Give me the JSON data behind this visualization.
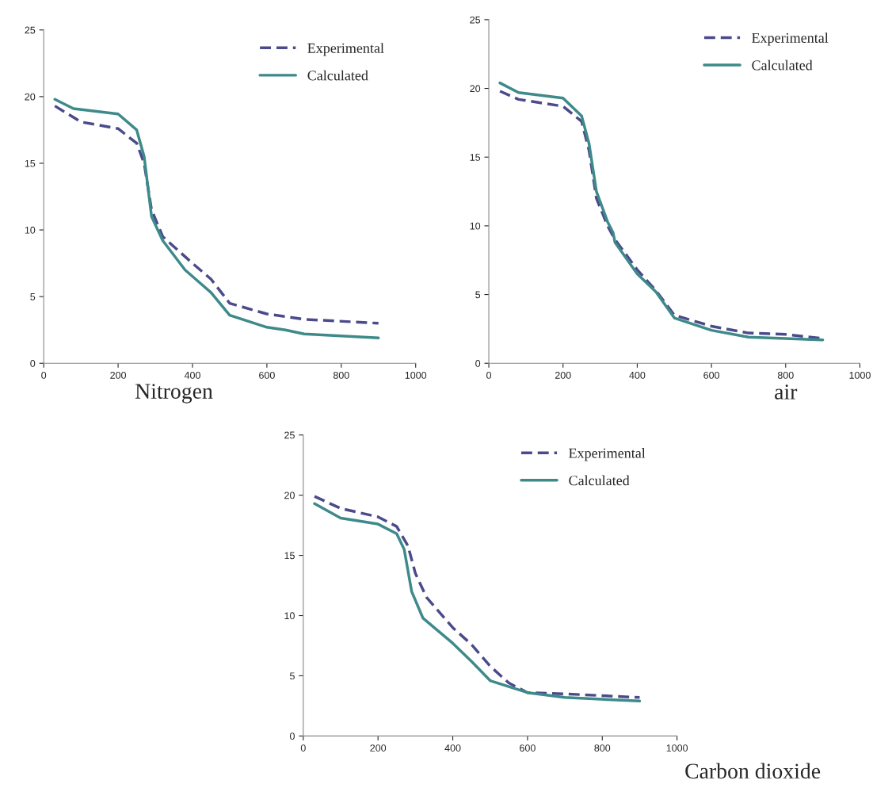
{
  "chart_data": [
    {
      "type": "line",
      "xlabel": "Nitrogen",
      "xlim": [
        0,
        1000
      ],
      "xticks": [
        0,
        200,
        400,
        600,
        800,
        1000
      ],
      "ylim": [
        0,
        25
      ],
      "yticks": [
        0,
        5,
        10,
        15,
        20,
        25
      ],
      "grid": false,
      "legend": "top right",
      "marker": "none",
      "series": [
        {
          "name": "Experimental",
          "color": "#4b4b8c",
          "line_style": "dashed",
          "x": [
            30,
            100,
            200,
            250,
            270,
            290,
            320,
            400,
            450,
            500,
            600,
            700,
            900
          ],
          "values": [
            19.3,
            18.1,
            17.6,
            16.5,
            15,
            11.5,
            9.5,
            7.5,
            6.3,
            4.5,
            3.7,
            3.3,
            3.0
          ]
        },
        {
          "name": "Calculated",
          "color": "#3e8a8a",
          "line_style": "solid",
          "x": [
            30,
            80,
            200,
            250,
            270,
            290,
            320,
            380,
            450,
            500,
            600,
            650,
            700,
            900
          ],
          "values": [
            19.8,
            19.1,
            18.7,
            17.5,
            15.5,
            11,
            9.2,
            7,
            5.3,
            3.6,
            2.7,
            2.5,
            2.2,
            1.9
          ]
        }
      ]
    },
    {
      "type": "line",
      "xlabel": "air",
      "xlim": [
        0,
        1000
      ],
      "xticks": [
        0,
        200,
        400,
        600,
        800,
        1000
      ],
      "ylim": [
        0,
        25
      ],
      "yticks": [
        0,
        5,
        10,
        15,
        20,
        25
      ],
      "grid": false,
      "legend": "top right",
      "marker": "none",
      "series": [
        {
          "name": "Experimental",
          "color": "#4b4b8c",
          "line_style": "dashed",
          "x": [
            30,
            80,
            200,
            250,
            270,
            290,
            320,
            340,
            400,
            450,
            500,
            600,
            700,
            800,
            900
          ],
          "values": [
            19.8,
            19.2,
            18.7,
            17.6,
            15.5,
            12,
            10,
            9,
            6.8,
            5.3,
            3.5,
            2.7,
            2.2,
            2.1,
            1.8
          ]
        },
        {
          "name": "Calculated",
          "color": "#3e8a8a",
          "line_style": "solid",
          "x": [
            30,
            80,
            200,
            250,
            270,
            290,
            320,
            335,
            340,
            400,
            450,
            500,
            600,
            700,
            900
          ],
          "values": [
            20.4,
            19.7,
            19.3,
            18,
            16,
            12.5,
            10.3,
            9.5,
            8.8,
            6.5,
            5.2,
            3.3,
            2.4,
            1.9,
            1.7
          ]
        }
      ]
    },
    {
      "type": "line",
      "xlabel": "Carbon dioxide",
      "xlim": [
        0,
        1000
      ],
      "xticks": [
        0,
        200,
        400,
        600,
        800,
        1000
      ],
      "ylim": [
        0,
        25
      ],
      "yticks": [
        0,
        5,
        10,
        15,
        20,
        25
      ],
      "grid": false,
      "legend": "top right",
      "marker": "none",
      "series": [
        {
          "name": "Experimental",
          "color": "#4b4b8c",
          "line_style": "dashed",
          "x": [
            30,
            100,
            200,
            250,
            280,
            300,
            330,
            400,
            450,
            500,
            550,
            600,
            700,
            900
          ],
          "values": [
            19.9,
            18.9,
            18.2,
            17.4,
            15.8,
            13.5,
            11.5,
            9,
            7.6,
            5.8,
            4.4,
            3.6,
            3.5,
            3.2
          ]
        },
        {
          "name": "Calculated",
          "color": "#3e8a8a",
          "line_style": "solid",
          "x": [
            30,
            100,
            200,
            250,
            270,
            290,
            320,
            400,
            450,
            500,
            600,
            700,
            900
          ],
          "values": [
            19.3,
            18.1,
            17.6,
            16.8,
            15.5,
            12,
            9.8,
            7.7,
            6.2,
            4.6,
            3.6,
            3.2,
            2.9
          ]
        }
      ]
    }
  ]
}
